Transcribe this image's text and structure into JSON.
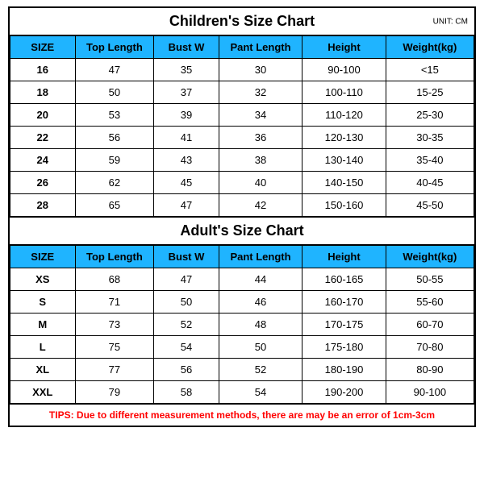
{
  "colors": {
    "header_bg": "#1fb4ff",
    "border": "#000000",
    "tips_color": "#ff0000",
    "background": "#ffffff",
    "text": "#000000"
  },
  "column_widths_pct": [
    14,
    17,
    14,
    18,
    18,
    19
  ],
  "children": {
    "title": "Children's Size Chart",
    "unit_label": "UNIT: CM",
    "columns": [
      "SIZE",
      "Top Length",
      "Bust W",
      "Pant Length",
      "Height",
      "Weight(kg)"
    ],
    "rows": [
      [
        "16",
        "47",
        "35",
        "30",
        "90-100",
        "<15"
      ],
      [
        "18",
        "50",
        "37",
        "32",
        "100-110",
        "15-25"
      ],
      [
        "20",
        "53",
        "39",
        "34",
        "110-120",
        "25-30"
      ],
      [
        "22",
        "56",
        "41",
        "36",
        "120-130",
        "30-35"
      ],
      [
        "24",
        "59",
        "43",
        "38",
        "130-140",
        "35-40"
      ],
      [
        "26",
        "62",
        "45",
        "40",
        "140-150",
        "40-45"
      ],
      [
        "28",
        "65",
        "47",
        "42",
        "150-160",
        "45-50"
      ]
    ]
  },
  "adult": {
    "title": "Adult's Size Chart",
    "columns": [
      "SIZE",
      "Top Length",
      "Bust W",
      "Pant Length",
      "Height",
      "Weight(kg)"
    ],
    "rows": [
      [
        "XS",
        "68",
        "47",
        "44",
        "160-165",
        "50-55"
      ],
      [
        "S",
        "71",
        "50",
        "46",
        "160-170",
        "55-60"
      ],
      [
        "M",
        "73",
        "52",
        "48",
        "170-175",
        "60-70"
      ],
      [
        "L",
        "75",
        "54",
        "50",
        "175-180",
        "70-80"
      ],
      [
        "XL",
        "77",
        "56",
        "52",
        "180-190",
        "80-90"
      ],
      [
        "XXL",
        "79",
        "58",
        "54",
        "190-200",
        "90-100"
      ]
    ]
  },
  "tips": "TIPS: Due to different measurement methods, there are may be an error of 1cm-3cm"
}
